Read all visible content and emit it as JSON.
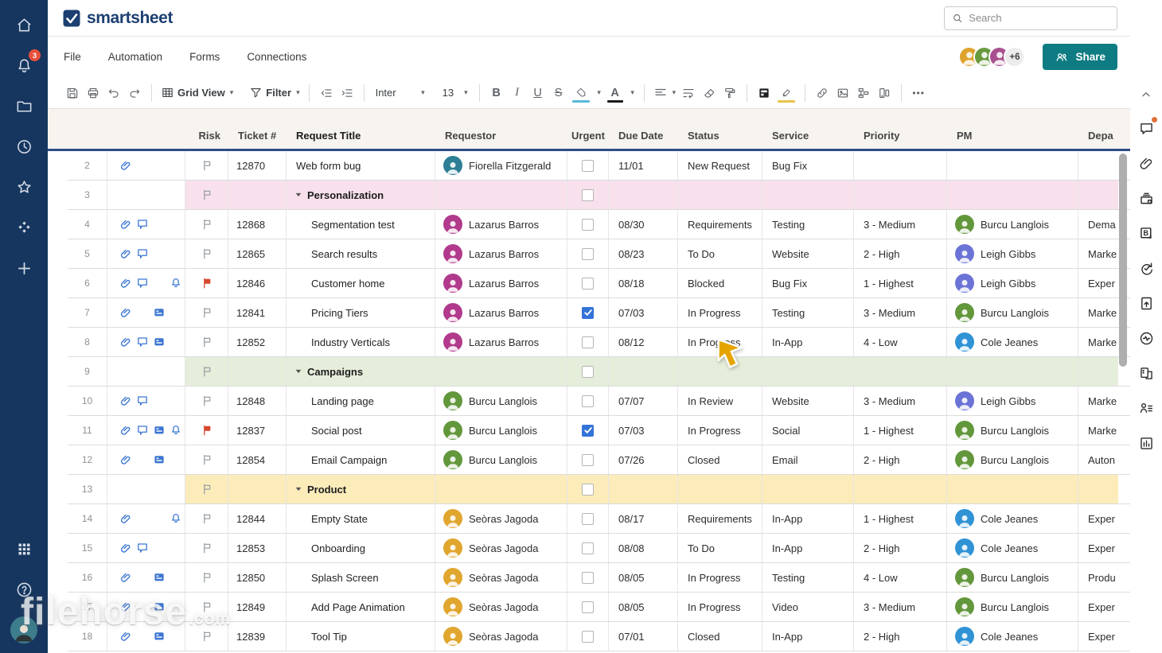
{
  "topbar": {
    "logo_text": "smartsheet",
    "search_placeholder": "Search"
  },
  "left_rail": {
    "badge_count": "3",
    "items": [
      "home",
      "notifications",
      "browse",
      "recents",
      "favorites",
      "solution-center",
      "create",
      "apps",
      "help",
      "account"
    ]
  },
  "menubar": {
    "items": [
      "File",
      "Automation",
      "Forms",
      "Connections"
    ],
    "avatar_overflow": "+6",
    "share_label": "Share"
  },
  "toolbar": {
    "view_label": "Grid View",
    "filter_label": "Filter",
    "font_name": "Inter",
    "font_size": "13"
  },
  "glyphs": {
    "caret_down": "▾",
    "more": "•••",
    "bold": "B",
    "italic": "I",
    "underline": "U",
    "strikethrough": "S",
    "text_color": "A"
  },
  "colors": {
    "accent_navy": "#16365f",
    "share_teal": "#0e7c82",
    "row_icon_blue": "#3b76d2",
    "checkbox_blue": "#3473d9",
    "flag_red": "#d7472d",
    "flag_gray": "#9aa0a6",
    "header_underline": "#2d4e85",
    "fill_swatch": "#56b9d8",
    "text_swatch": "#1a1a1a",
    "highlight_swatch": "#e8c54a",
    "groups": {
      "pink": "#f8e1ec",
      "green": "#e5eeda",
      "yellow": "#fcecba"
    }
  },
  "people": {
    "Fiorella Fitzgerald": "#2e7f95",
    "Lazarus Barros": "#b13a8c",
    "Burcu Langlois": "#63973c",
    "Leigh Gibbs": "#6b74d6",
    "Cole Jeanes": "#2f93d6",
    "Seòras Jagoda": "#e0a62e"
  },
  "collaborator_colors": [
    "#a8508f",
    "#6a9a3f",
    "#dfa32d"
  ],
  "sheet": {
    "columns": [
      {
        "key": "risk",
        "label": "Risk"
      },
      {
        "key": "ticket",
        "label": "Ticket #"
      },
      {
        "key": "title",
        "label": "Request Title"
      },
      {
        "key": "requestor",
        "label": "Requestor"
      },
      {
        "key": "urgent",
        "label": "Urgent"
      },
      {
        "key": "due",
        "label": "Due Date"
      },
      {
        "key": "status",
        "label": "Status"
      },
      {
        "key": "service",
        "label": "Service"
      },
      {
        "key": "priority",
        "label": "Priority"
      },
      {
        "key": "pm",
        "label": "PM"
      },
      {
        "key": "dept",
        "label": "Depa"
      }
    ],
    "rows": [
      {
        "n": "2",
        "type": "item",
        "icons": [
          "paperclip"
        ],
        "risk": "gray",
        "ticket": "12870",
        "title": "Web form bug",
        "indent": 0,
        "requestor": "Fiorella Fitzgerald",
        "urgent": false,
        "due": "11/01",
        "status": "New Request",
        "service": "Bug Fix",
        "priority": "",
        "pm": "",
        "dept": ""
      },
      {
        "n": "3",
        "type": "group",
        "label": "Personalization",
        "group_color": "pink"
      },
      {
        "n": "4",
        "type": "item",
        "icons": [
          "paperclip",
          "comment"
        ],
        "risk": "gray",
        "ticket": "12868",
        "title": "Segmentation test",
        "indent": 1,
        "requestor": "Lazarus Barros",
        "urgent": false,
        "due": "08/30",
        "status": "Requirements",
        "service": "Testing",
        "priority": "3 - Medium",
        "pm": "Burcu Langlois",
        "dept": "Dema"
      },
      {
        "n": "5",
        "type": "item",
        "icons": [
          "paperclip",
          "comment"
        ],
        "risk": "gray",
        "ticket": "12865",
        "title": "Search results",
        "indent": 1,
        "requestor": "Lazarus Barros",
        "urgent": false,
        "due": "08/23",
        "status": "To Do",
        "service": "Website",
        "priority": "2 - High",
        "pm": "Leigh Gibbs",
        "dept": "Marke"
      },
      {
        "n": "6",
        "type": "item",
        "icons": [
          "paperclip",
          "comment",
          "bell"
        ],
        "risk": "red",
        "ticket": "12846",
        "title": "Customer home",
        "indent": 1,
        "requestor": "Lazarus Barros",
        "urgent": false,
        "due": "08/18",
        "status": "Blocked",
        "service": "Bug Fix",
        "priority": "1 - Highest",
        "pm": "Leigh Gibbs",
        "dept": "Exper"
      },
      {
        "n": "7",
        "type": "item",
        "icons": [
          "paperclip",
          "card"
        ],
        "risk": "gray",
        "ticket": "12841",
        "title": "Pricing Tiers",
        "indent": 1,
        "requestor": "Lazarus Barros",
        "urgent": true,
        "due": "07/03",
        "status": "In Progress",
        "service": "Testing",
        "priority": "3 - Medium",
        "pm": "Burcu Langlois",
        "dept": "Marke"
      },
      {
        "n": "8",
        "type": "item",
        "icons": [
          "paperclip",
          "comment",
          "card"
        ],
        "risk": "gray",
        "ticket": "12852",
        "title": "Industry Verticals",
        "indent": 1,
        "requestor": "Lazarus Barros",
        "urgent": false,
        "due": "08/12",
        "status": "In Progress",
        "service": "In-App",
        "priority": "4 - Low",
        "pm": "Cole Jeanes",
        "dept": "Marke"
      },
      {
        "n": "9",
        "type": "group",
        "label": "Campaigns",
        "group_color": "green"
      },
      {
        "n": "10",
        "type": "item",
        "icons": [
          "paperclip",
          "comment"
        ],
        "risk": "gray",
        "ticket": "12848",
        "title": "Landing page",
        "indent": 1,
        "requestor": "Burcu Langlois",
        "urgent": false,
        "due": "07/07",
        "status": "In Review",
        "service": "Website",
        "priority": "3 - Medium",
        "pm": "Leigh Gibbs",
        "dept": "Marke"
      },
      {
        "n": "11",
        "type": "item",
        "icons": [
          "paperclip",
          "comment",
          "card",
          "bell"
        ],
        "risk": "red",
        "ticket": "12837",
        "title": "Social post",
        "indent": 1,
        "requestor": "Burcu Langlois",
        "urgent": true,
        "due": "07/03",
        "status": "In Progress",
        "service": "Social",
        "priority": "1 - Highest",
        "pm": "Burcu Langlois",
        "dept": "Marke"
      },
      {
        "n": "12",
        "type": "item",
        "icons": [
          "paperclip",
          "card"
        ],
        "risk": "gray",
        "ticket": "12854",
        "title": "Email Campaign",
        "indent": 1,
        "requestor": "Burcu Langlois",
        "urgent": false,
        "due": "07/26",
        "status": "Closed",
        "service": "Email",
        "priority": "2 - High",
        "pm": "Burcu Langlois",
        "dept": "Auton"
      },
      {
        "n": "13",
        "type": "group",
        "label": "Product",
        "group_color": "yellow"
      },
      {
        "n": "14",
        "type": "item",
        "icons": [
          "paperclip",
          "bell"
        ],
        "risk": "gray",
        "ticket": "12844",
        "title": "Empty State",
        "indent": 1,
        "requestor": "Seòras Jagoda",
        "urgent": false,
        "due": "08/17",
        "status": "Requirements",
        "service": "In-App",
        "priority": "1 - Highest",
        "pm": "Cole Jeanes",
        "dept": "Exper"
      },
      {
        "n": "15",
        "type": "item",
        "icons": [
          "paperclip",
          "comment"
        ],
        "risk": "gray",
        "ticket": "12853",
        "title": "Onboarding",
        "indent": 1,
        "requestor": "Seòras Jagoda",
        "urgent": false,
        "due": "08/08",
        "status": "To Do",
        "service": "In-App",
        "priority": "2 - High",
        "pm": "Cole Jeanes",
        "dept": "Exper"
      },
      {
        "n": "16",
        "type": "item",
        "icons": [
          "paperclip",
          "card"
        ],
        "risk": "gray",
        "ticket": "12850",
        "title": "Splash Screen",
        "indent": 1,
        "requestor": "Seòras Jagoda",
        "urgent": false,
        "due": "08/05",
        "status": "In Progress",
        "service": "Testing",
        "priority": "4 - Low",
        "pm": "Burcu Langlois",
        "dept": "Produ"
      },
      {
        "n": "17",
        "type": "item",
        "icons": [
          "paperclip",
          "card"
        ],
        "risk": "gray",
        "ticket": "12849",
        "title": "Add Page Animation",
        "indent": 1,
        "requestor": "Seòras Jagoda",
        "urgent": false,
        "due": "08/05",
        "status": "In Progress",
        "service": "Video",
        "priority": "3 - Medium",
        "pm": "Burcu Langlois",
        "dept": "Exper"
      },
      {
        "n": "18",
        "type": "item",
        "icons": [
          "paperclip",
          "card"
        ],
        "risk": "gray",
        "ticket": "12839",
        "title": "Tool Tip",
        "indent": 1,
        "requestor": "Seòras Jagoda",
        "urgent": false,
        "due": "07/01",
        "status": "Closed",
        "service": "In-App",
        "priority": "2 - High",
        "pm": "Cole Jeanes",
        "dept": "Exper"
      }
    ]
  },
  "right_rail": {
    "icons": [
      "conversations",
      "attachments",
      "proofs",
      "brandfolder",
      "update-requests",
      "publish",
      "activity-log",
      "connections",
      "contacts",
      "sheet-summary"
    ],
    "conversations_has_notification": true
  },
  "watermark": {
    "text_main": "filehorse",
    "text_suffix": ".com"
  }
}
